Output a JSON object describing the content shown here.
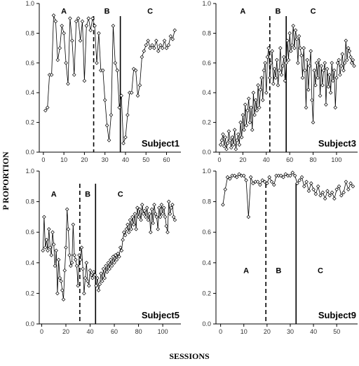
{
  "figure": {
    "ylabel": "P ROPORTION",
    "xlabel": "SESSIONS"
  },
  "chart_data": [
    {
      "type": "line",
      "title": "Subject1",
      "xlim": [
        -2,
        67
      ],
      "ylim": [
        0,
        1
      ],
      "x_ticks": [
        0,
        10,
        20,
        30,
        40,
        50,
        60
      ],
      "y_ticks": [
        0.0,
        0.2,
        0.4,
        0.6,
        0.8,
        1.0
      ],
      "grid": false,
      "phase_lines": [
        {
          "x": 24.5,
          "style": "dashed"
        },
        {
          "x": 37.5,
          "style": "solid"
        }
      ],
      "phase_labels": [
        {
          "text": "A",
          "x": 10,
          "y": 0.95
        },
        {
          "text": "B",
          "x": 31,
          "y": 0.95
        },
        {
          "text": "C",
          "x": 52,
          "y": 0.95
        }
      ],
      "series": [
        {
          "x": [
            1,
            2,
            3,
            4,
            5,
            6,
            7,
            8,
            9,
            10,
            11,
            12,
            13,
            14,
            15,
            16,
            17,
            18,
            19,
            20,
            21,
            22,
            23,
            24,
            25,
            26,
            27,
            28,
            29,
            30,
            31,
            32,
            33,
            34,
            35,
            36,
            37,
            38,
            39,
            40,
            41,
            42,
            43,
            44,
            45,
            46,
            47,
            48,
            49,
            50,
            51,
            52,
            53,
            54,
            55,
            56,
            57,
            58,
            59,
            60,
            61,
            62,
            63,
            64
          ],
          "y": [
            0.28,
            0.3,
            0.52,
            0.52,
            0.92,
            0.88,
            0.62,
            0.7,
            0.85,
            0.8,
            0.6,
            0.46,
            0.9,
            0.75,
            0.52,
            0.88,
            0.9,
            0.75,
            0.88,
            0.48,
            0.85,
            0.9,
            0.82,
            0.9,
            0.85,
            0.6,
            0.8,
            0.55,
            0.55,
            0.35,
            0.18,
            0.08,
            0.25,
            0.85,
            0.6,
            0.55,
            0.3,
            0.38,
            0.06,
            0.1,
            0.25,
            0.4,
            0.4,
            0.56,
            0.55,
            0.38,
            0.45,
            0.64,
            0.68,
            0.72,
            0.75,
            0.7,
            0.72,
            0.7,
            0.75,
            0.68,
            0.72,
            0.7,
            0.75,
            0.7,
            0.72,
            0.78,
            0.76,
            0.82
          ]
        }
      ]
    },
    {
      "type": "line",
      "title": "Subject3",
      "xlim": [
        -3,
        118
      ],
      "ylim": [
        0,
        1
      ],
      "x_ticks": [
        0,
        20,
        40,
        60,
        80,
        100
      ],
      "y_ticks": [
        0.0,
        0.2,
        0.4,
        0.6,
        0.8,
        1.0
      ],
      "grid": false,
      "phase_lines": [
        {
          "x": 43,
          "style": "dashed"
        },
        {
          "x": 57,
          "style": "solid"
        }
      ],
      "phase_labels": [
        {
          "text": "A",
          "x": 20,
          "y": 0.95
        },
        {
          "text": "B",
          "x": 50,
          "y": 0.95
        },
        {
          "text": "C",
          "x": 80,
          "y": 0.95
        }
      ],
      "series": [
        {
          "x": [
            1,
            2,
            3,
            4,
            5,
            6,
            7,
            8,
            9,
            10,
            11,
            12,
            13,
            14,
            15,
            16,
            17,
            18,
            19,
            20,
            21,
            22,
            23,
            24,
            25,
            26,
            27,
            28,
            29,
            30,
            31,
            32,
            33,
            34,
            35,
            36,
            37,
            38,
            39,
            40,
            41,
            42,
            43,
            44,
            45,
            46,
            47,
            48,
            49,
            50,
            51,
            52,
            53,
            54,
            55,
            56,
            57,
            58,
            59,
            60,
            61,
            62,
            63,
            64,
            65,
            66,
            67,
            68,
            69,
            70,
            71,
            72,
            73,
            74,
            75,
            76,
            77,
            78,
            79,
            80,
            81,
            82,
            83,
            84,
            85,
            86,
            87,
            88,
            89,
            90,
            91,
            92,
            93,
            94,
            95,
            96,
            97,
            98,
            99,
            100,
            101,
            102,
            103,
            104,
            105,
            106,
            107,
            108,
            109,
            110,
            111,
            112,
            113,
            114,
            115
          ],
          "y": [
            0.05,
            0.08,
            0.12,
            0.04,
            0.1,
            0.02,
            0.06,
            0.14,
            0.08,
            0.03,
            0.1,
            0.05,
            0.15,
            0.02,
            0.08,
            0.12,
            0.05,
            0.2,
            0.1,
            0.25,
            0.15,
            0.32,
            0.18,
            0.28,
            0.36,
            0.2,
            0.3,
            0.15,
            0.4,
            0.25,
            0.35,
            0.28,
            0.45,
            0.3,
            0.42,
            0.5,
            0.35,
            0.55,
            0.6,
            0.4,
            0.64,
            0.7,
            0.5,
            0.6,
            0.68,
            0.46,
            0.56,
            0.5,
            0.62,
            0.45,
            0.55,
            0.7,
            0.52,
            0.58,
            0.64,
            0.48,
            0.6,
            0.75,
            0.62,
            0.8,
            0.68,
            0.72,
            0.85,
            0.7,
            0.82,
            0.76,
            0.6,
            0.78,
            0.7,
            0.65,
            0.5,
            0.7,
            0.55,
            0.3,
            0.62,
            0.42,
            0.58,
            0.68,
            0.35,
            0.2,
            0.55,
            0.45,
            0.6,
            0.5,
            0.62,
            0.38,
            0.58,
            0.45,
            0.55,
            0.6,
            0.32,
            0.56,
            0.44,
            0.52,
            0.4,
            0.6,
            0.48,
            0.55,
            0.3,
            0.5,
            0.6,
            0.62,
            0.52,
            0.58,
            0.66,
            0.55,
            0.6,
            0.75,
            0.62,
            0.7,
            0.68,
            0.64,
            0.6,
            0.62,
            0.58
          ]
        }
      ]
    },
    {
      "type": "line",
      "title": "Subject5",
      "xlim": [
        -2,
        115
      ],
      "ylim": [
        0,
        1
      ],
      "x_ticks": [
        0,
        20,
        40,
        60,
        80,
        100
      ],
      "y_ticks": [
        0.0,
        0.2,
        0.4,
        0.6,
        0.8,
        1.0
      ],
      "grid": false,
      "phase_lines": [
        {
          "x": 31.5,
          "style": "dashed"
        },
        {
          "x": 44.5,
          "style": "solid"
        }
      ],
      "phase_labels": [
        {
          "text": "A",
          "x": 10,
          "y": 0.85
        },
        {
          "text": "B",
          "x": 38,
          "y": 0.85
        },
        {
          "text": "C",
          "x": 65,
          "y": 0.85
        }
      ],
      "series": [
        {
          "x": [
            1,
            2,
            3,
            4,
            5,
            6,
            7,
            8,
            9,
            10,
            11,
            12,
            13,
            14,
            15,
            16,
            17,
            18,
            19,
            20,
            21,
            22,
            23,
            24,
            25,
            26,
            27,
            28,
            29,
            30,
            31,
            32,
            33,
            34,
            35,
            36,
            37,
            38,
            39,
            40,
            41,
            42,
            43,
            44,
            45,
            46,
            47,
            48,
            49,
            50,
            51,
            52,
            53,
            54,
            55,
            56,
            57,
            58,
            59,
            60,
            61,
            62,
            63,
            64,
            65,
            66,
            67,
            68,
            69,
            70,
            71,
            72,
            73,
            74,
            75,
            76,
            77,
            78,
            79,
            80,
            81,
            82,
            83,
            84,
            85,
            86,
            87,
            88,
            89,
            90,
            91,
            92,
            93,
            94,
            95,
            96,
            97,
            98,
            99,
            100,
            101,
            102,
            103,
            104,
            105,
            106,
            107,
            108,
            109,
            110
          ],
          "y": [
            0.48,
            0.7,
            0.5,
            0.55,
            0.48,
            0.62,
            0.5,
            0.45,
            0.6,
            0.52,
            0.38,
            0.48,
            0.2,
            0.42,
            0.3,
            0.28,
            0.22,
            0.16,
            0.35,
            0.5,
            0.75,
            0.62,
            0.45,
            0.38,
            0.4,
            0.65,
            0.45,
            0.42,
            0.38,
            0.25,
            0.45,
            0.42,
            0.5,
            0.36,
            0.2,
            0.3,
            0.4,
            0.28,
            0.25,
            0.35,
            0.32,
            0.3,
            0.34,
            0.32,
            0.25,
            0.3,
            0.22,
            0.26,
            0.33,
            0.28,
            0.36,
            0.3,
            0.38,
            0.34,
            0.4,
            0.36,
            0.42,
            0.38,
            0.44,
            0.4,
            0.45,
            0.42,
            0.46,
            0.44,
            0.5,
            0.48,
            0.55,
            0.6,
            0.58,
            0.62,
            0.65,
            0.6,
            0.68,
            0.62,
            0.7,
            0.65,
            0.72,
            0.62,
            0.76,
            0.7,
            0.75,
            0.68,
            0.78,
            0.72,
            0.74,
            0.7,
            0.76,
            0.68,
            0.72,
            0.6,
            0.75,
            0.66,
            0.78,
            0.72,
            0.7,
            0.62,
            0.76,
            0.7,
            0.78,
            0.72,
            0.76,
            0.7,
            0.64,
            0.6,
            0.8,
            0.72,
            0.76,
            0.78,
            0.7,
            0.68
          ]
        }
      ]
    },
    {
      "type": "line",
      "title": "Subject9",
      "xlim": [
        -2,
        59
      ],
      "ylim": [
        0,
        1
      ],
      "x_ticks": [
        0,
        10,
        20,
        30,
        40,
        50
      ],
      "y_ticks": [
        0.0,
        0.2,
        0.4,
        0.6,
        0.8,
        1.0
      ],
      "grid": false,
      "phase_lines": [
        {
          "x": 19.5,
          "style": "dashed"
        },
        {
          "x": 32.5,
          "style": "solid"
        }
      ],
      "phase_labels": [
        {
          "text": "A",
          "x": 11,
          "y": 0.35
        },
        {
          "text": "B",
          "x": 25,
          "y": 0.35
        },
        {
          "text": "C",
          "x": 43,
          "y": 0.35
        }
      ],
      "series": [
        {
          "x": [
            1,
            2,
            3,
            4,
            5,
            6,
            7,
            8,
            9,
            10,
            11,
            12,
            13,
            14,
            15,
            16,
            17,
            18,
            19,
            20,
            21,
            22,
            23,
            24,
            25,
            26,
            27,
            28,
            29,
            30,
            31,
            32,
            33,
            34,
            35,
            36,
            37,
            38,
            39,
            40,
            41,
            42,
            43,
            44,
            45,
            46,
            47,
            48,
            49,
            50,
            51,
            52,
            53,
            54,
            55,
            56,
            57
          ],
          "y": [
            0.78,
            0.88,
            0.96,
            0.95,
            0.97,
            0.97,
            0.96,
            0.98,
            0.97,
            0.97,
            0.94,
            0.7,
            0.96,
            0.92,
            0.93,
            0.93,
            0.91,
            0.94,
            0.93,
            0.92,
            0.96,
            0.93,
            0.91,
            0.97,
            0.97,
            0.97,
            0.96,
            0.98,
            0.97,
            0.97,
            0.99,
            0.97,
            0.92,
            0.94,
            0.96,
            0.9,
            0.93,
            0.87,
            0.92,
            0.88,
            0.85,
            0.9,
            0.84,
            0.86,
            0.82,
            0.87,
            0.84,
            0.86,
            0.82,
            0.88,
            0.9,
            0.84,
            0.86,
            0.93,
            0.88,
            0.92,
            0.9
          ]
        }
      ]
    }
  ]
}
